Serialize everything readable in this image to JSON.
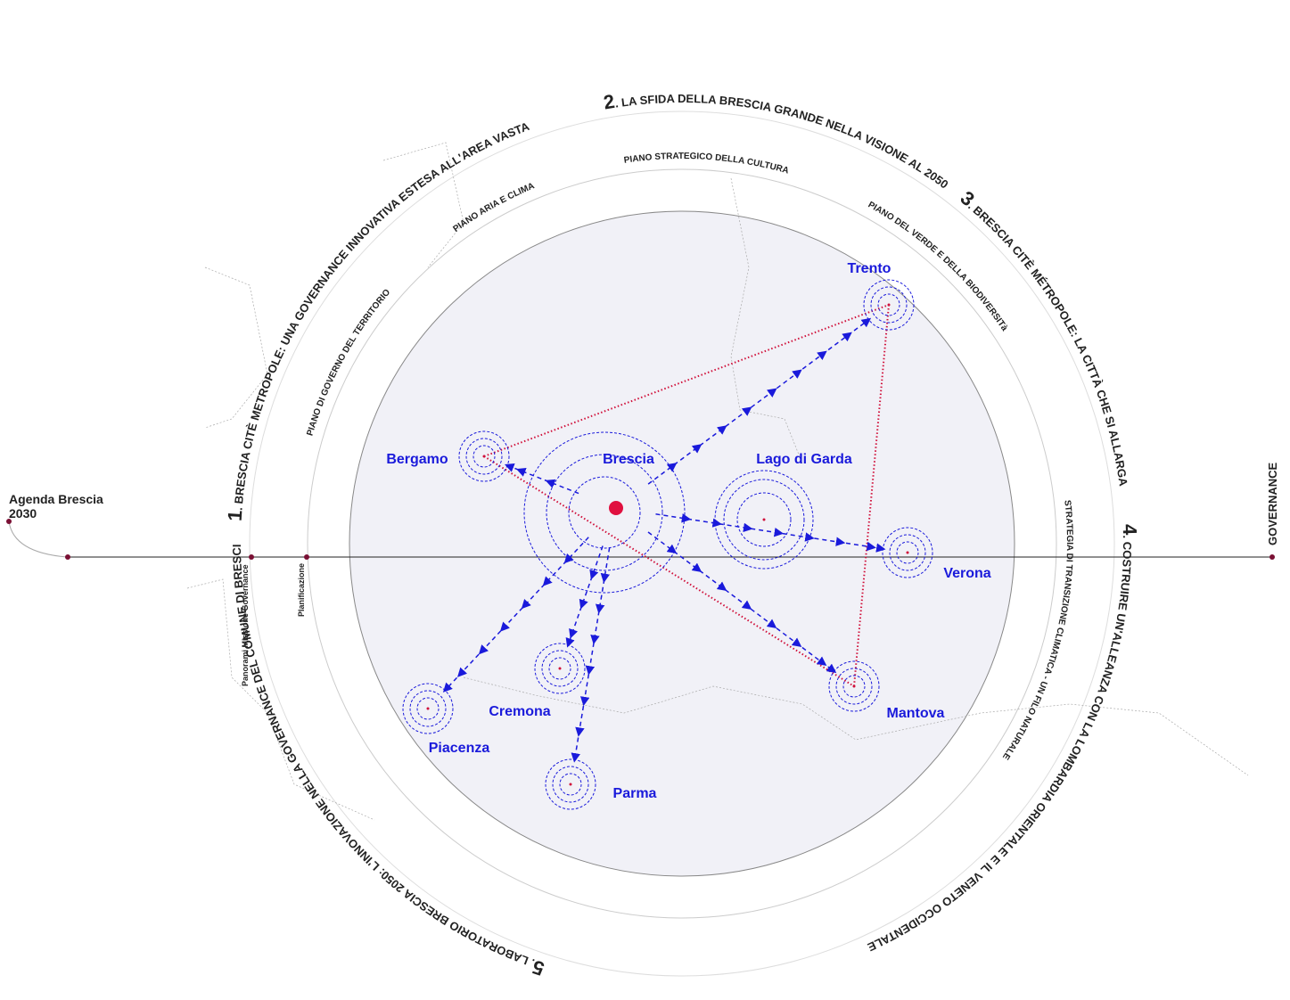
{
  "header": {
    "title": "Agenda Brescia 2030",
    "side_label": "GOVERNANCE"
  },
  "axis_labels": [
    "Panorami Missione Governance",
    "Planificazione"
  ],
  "sections": [
    {
      "number": "1",
      "title": ". BRESCIA CITÈ METROPOLE: UNA GOVERNANCE INNOVATIVA ESTESA ALL'AREA VASTA"
    },
    {
      "number": "2",
      "title": ". LA SFIDA DELLA BRESCIA GRANDE NELLA VISIONE AL 2050"
    },
    {
      "number": "3",
      "title": ". BRESCIA CITÈ MÉTROPOLE: LA CITTÀ CHE SI ALLARGA"
    },
    {
      "number": "4",
      "title": ". COSTRUIRE UN'ALLEANZA CON LA LOMBARDIA ORIENTALE E IL VENETO OCCIDENTALE"
    },
    {
      "number": "5",
      "title": ". LABORATORIO BRESCIA 2050: L'INNOVAZIONE NELLA GOVERNANCE DEL COMUNE DI BRESCIA"
    }
  ],
  "plans": [
    "PIANO DI GOVERNO DEL TERRITORIO",
    "PIANO ARIA E CLIMA",
    "PIANO STRATEGICO  DELLA CULTURA",
    "PIANO DEL VERDE E DELLA BIODIVERSITà",
    "STRATEGIA DI TRANSIZIONE CLIMATICA - UN FILO NATURALE"
  ],
  "cities": [
    "Brescia",
    "Bergamo",
    "Trento",
    "Lago di Garda",
    "Verona",
    "Mantova",
    "Cremona",
    "Piacenza",
    "Parma"
  ]
}
